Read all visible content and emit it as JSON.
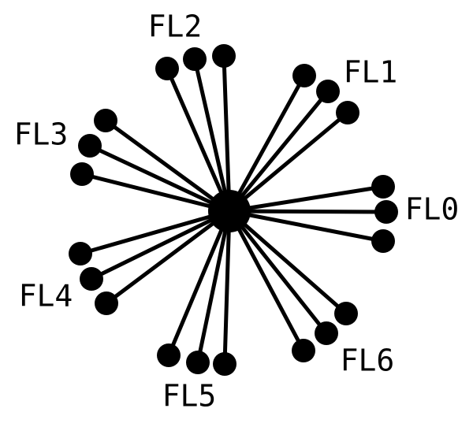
{
  "diagram": {
    "type": "star-graph",
    "colors": {
      "foreground": "#000000",
      "background": "#ffffff"
    },
    "hub": {
      "name": "hub"
    },
    "groups": [
      {
        "id": "fl0",
        "label": "FL0",
        "leaves": 3
      },
      {
        "id": "fl1",
        "label": "FL1",
        "leaves": 3
      },
      {
        "id": "fl2",
        "label": "FL2",
        "leaves": 3
      },
      {
        "id": "fl3",
        "label": "FL3",
        "leaves": 3
      },
      {
        "id": "fl4",
        "label": "FL4",
        "leaves": 3
      },
      {
        "id": "fl5",
        "label": "FL5",
        "leaves": 3
      },
      {
        "id": "fl6",
        "label": "FL6",
        "leaves": 3
      }
    ]
  }
}
